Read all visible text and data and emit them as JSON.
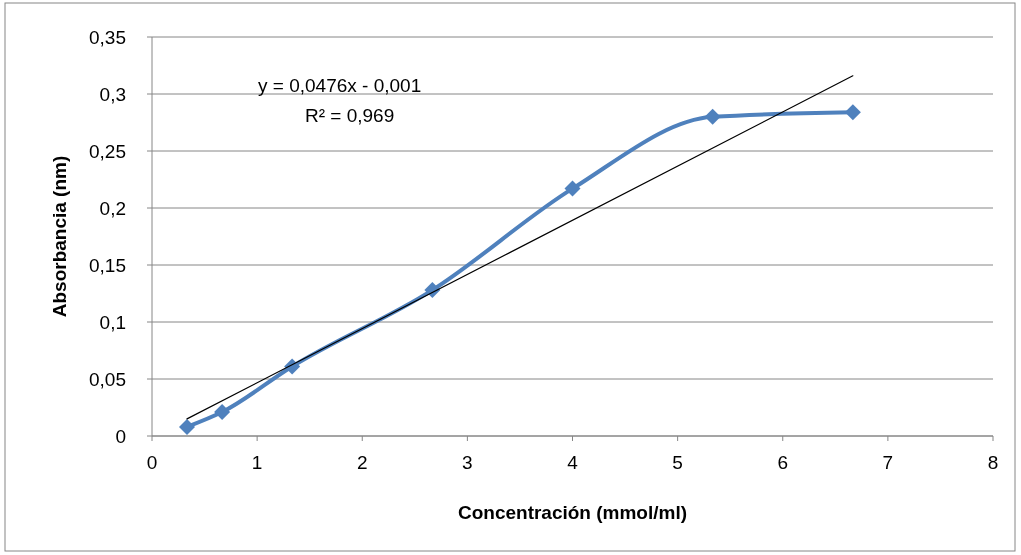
{
  "chart_data": {
    "type": "line",
    "xlabel": "Concentración (mmol/ml)",
    "ylabel": "Absorbancia (nm)",
    "xlim": [
      0,
      8
    ],
    "xticks": [
      0,
      1,
      2,
      3,
      4,
      5,
      6,
      7,
      8
    ],
    "ylim": [
      0,
      0.35
    ],
    "yticks": [
      0,
      {
        "value": 0.05,
        "label": "0,05"
      },
      {
        "value": 0.1,
        "label": "0,1"
      },
      {
        "value": 0.15,
        "label": "0,15"
      },
      {
        "value": 0.2,
        "label": "0,2"
      },
      {
        "value": 0.25,
        "label": "0,25"
      },
      {
        "value": 0.3,
        "label": "0,3"
      },
      {
        "value": 0.35,
        "label": "0,35"
      }
    ],
    "grid": "y",
    "series": [
      {
        "color": "#4f81bd",
        "marker": "diamond",
        "x": [
          0.333,
          0.667,
          1.333,
          2.667,
          4,
          5.333,
          6.667
        ],
        "values": [
          0.008,
          0.021,
          0.061,
          0.128,
          0.217,
          0.28,
          0.284
        ]
      },
      {
        "color": "#000000",
        "marker": "none",
        "x": [
          0.333,
          6.667
        ],
        "values": [
          0.015,
          0.316
        ]
      }
    ],
    "annotations": [
      "y = 0,0476x - 0,001",
      "R² = 0,969"
    ]
  }
}
